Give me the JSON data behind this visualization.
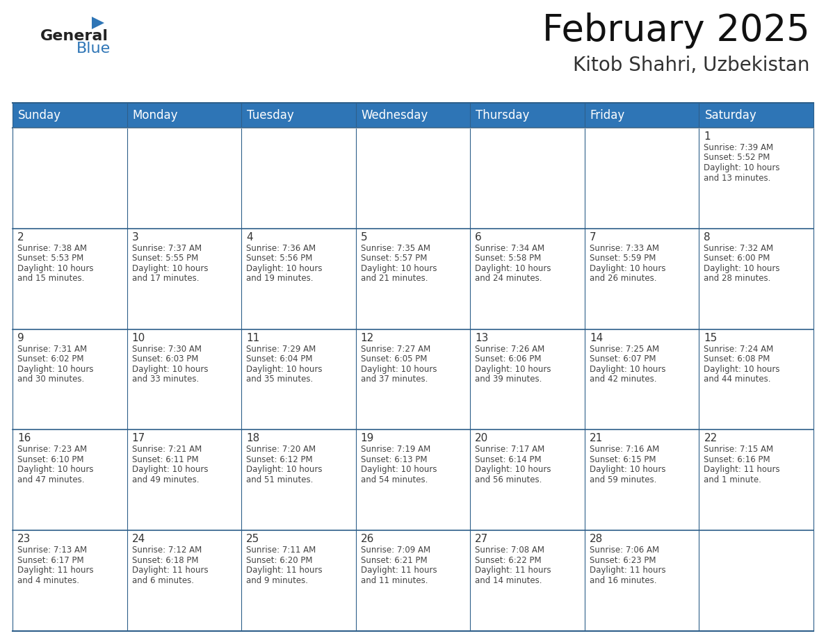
{
  "title": "February 2025",
  "subtitle": "Kitob Shahri, Uzbekistan",
  "header_bg": "#2E75B6",
  "header_text_color": "#FFFFFF",
  "day_names": [
    "Sunday",
    "Monday",
    "Tuesday",
    "Wednesday",
    "Thursday",
    "Friday",
    "Saturday"
  ],
  "border_color": "#2E5F8A",
  "day_num_color": "#333333",
  "info_text_color": "#444444",
  "logo_general_color": "#222222",
  "logo_blue_color": "#2E75B6",
  "logo_triangle_color": "#2E75B6",
  "calendar_data": [
    [
      null,
      null,
      null,
      null,
      null,
      null,
      {
        "day": 1,
        "sunrise": "7:39 AM",
        "sunset": "5:52 PM",
        "daylight": "10 hours\nand 13 minutes."
      }
    ],
    [
      {
        "day": 2,
        "sunrise": "7:38 AM",
        "sunset": "5:53 PM",
        "daylight": "10 hours\nand 15 minutes."
      },
      {
        "day": 3,
        "sunrise": "7:37 AM",
        "sunset": "5:55 PM",
        "daylight": "10 hours\nand 17 minutes."
      },
      {
        "day": 4,
        "sunrise": "7:36 AM",
        "sunset": "5:56 PM",
        "daylight": "10 hours\nand 19 minutes."
      },
      {
        "day": 5,
        "sunrise": "7:35 AM",
        "sunset": "5:57 PM",
        "daylight": "10 hours\nand 21 minutes."
      },
      {
        "day": 6,
        "sunrise": "7:34 AM",
        "sunset": "5:58 PM",
        "daylight": "10 hours\nand 24 minutes."
      },
      {
        "day": 7,
        "sunrise": "7:33 AM",
        "sunset": "5:59 PM",
        "daylight": "10 hours\nand 26 minutes."
      },
      {
        "day": 8,
        "sunrise": "7:32 AM",
        "sunset": "6:00 PM",
        "daylight": "10 hours\nand 28 minutes."
      }
    ],
    [
      {
        "day": 9,
        "sunrise": "7:31 AM",
        "sunset": "6:02 PM",
        "daylight": "10 hours\nand 30 minutes."
      },
      {
        "day": 10,
        "sunrise": "7:30 AM",
        "sunset": "6:03 PM",
        "daylight": "10 hours\nand 33 minutes."
      },
      {
        "day": 11,
        "sunrise": "7:29 AM",
        "sunset": "6:04 PM",
        "daylight": "10 hours\nand 35 minutes."
      },
      {
        "day": 12,
        "sunrise": "7:27 AM",
        "sunset": "6:05 PM",
        "daylight": "10 hours\nand 37 minutes."
      },
      {
        "day": 13,
        "sunrise": "7:26 AM",
        "sunset": "6:06 PM",
        "daylight": "10 hours\nand 39 minutes."
      },
      {
        "day": 14,
        "sunrise": "7:25 AM",
        "sunset": "6:07 PM",
        "daylight": "10 hours\nand 42 minutes."
      },
      {
        "day": 15,
        "sunrise": "7:24 AM",
        "sunset": "6:08 PM",
        "daylight": "10 hours\nand 44 minutes."
      }
    ],
    [
      {
        "day": 16,
        "sunrise": "7:23 AM",
        "sunset": "6:10 PM",
        "daylight": "10 hours\nand 47 minutes."
      },
      {
        "day": 17,
        "sunrise": "7:21 AM",
        "sunset": "6:11 PM",
        "daylight": "10 hours\nand 49 minutes."
      },
      {
        "day": 18,
        "sunrise": "7:20 AM",
        "sunset": "6:12 PM",
        "daylight": "10 hours\nand 51 minutes."
      },
      {
        "day": 19,
        "sunrise": "7:19 AM",
        "sunset": "6:13 PM",
        "daylight": "10 hours\nand 54 minutes."
      },
      {
        "day": 20,
        "sunrise": "7:17 AM",
        "sunset": "6:14 PM",
        "daylight": "10 hours\nand 56 minutes."
      },
      {
        "day": 21,
        "sunrise": "7:16 AM",
        "sunset": "6:15 PM",
        "daylight": "10 hours\nand 59 minutes."
      },
      {
        "day": 22,
        "sunrise": "7:15 AM",
        "sunset": "6:16 PM",
        "daylight": "11 hours\nand 1 minute."
      }
    ],
    [
      {
        "day": 23,
        "sunrise": "7:13 AM",
        "sunset": "6:17 PM",
        "daylight": "11 hours\nand 4 minutes."
      },
      {
        "day": 24,
        "sunrise": "7:12 AM",
        "sunset": "6:18 PM",
        "daylight": "11 hours\nand 6 minutes."
      },
      {
        "day": 25,
        "sunrise": "7:11 AM",
        "sunset": "6:20 PM",
        "daylight": "11 hours\nand 9 minutes."
      },
      {
        "day": 26,
        "sunrise": "7:09 AM",
        "sunset": "6:21 PM",
        "daylight": "11 hours\nand 11 minutes."
      },
      {
        "day": 27,
        "sunrise": "7:08 AM",
        "sunset": "6:22 PM",
        "daylight": "11 hours\nand 14 minutes."
      },
      {
        "day": 28,
        "sunrise": "7:06 AM",
        "sunset": "6:23 PM",
        "daylight": "11 hours\nand 16 minutes."
      },
      null
    ]
  ],
  "fig_width": 11.88,
  "fig_height": 9.18,
  "dpi": 100
}
